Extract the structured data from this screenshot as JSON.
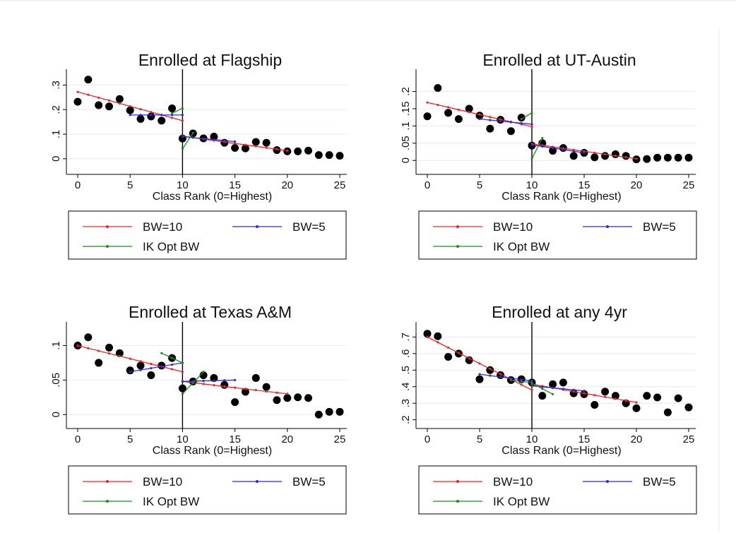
{
  "legend_labels": {
    "bw10": "BW=10",
    "bw5": "BW=5",
    "ik": "IK Opt BW"
  },
  "colors": {
    "bw10": "#e8262a",
    "bw5": "#2a2ad8",
    "ik": "#1f8a1f",
    "dots": "#000000",
    "grid": "#e3eaf0",
    "cutoff": "#000000"
  },
  "chart_data": [
    {
      "type": "scatter",
      "title": "Enrolled at Flagship",
      "xlabel": "Class Rank (0=Highest)",
      "ylabel": "",
      "xlim": [
        0,
        25
      ],
      "ylim": [
        -0.035,
        0.33
      ],
      "xticks": [
        0,
        5,
        10,
        15,
        20,
        25
      ],
      "yticks": [
        0,
        0.1,
        0.2,
        0.3
      ],
      "ytick_labels": [
        "0",
        ".1",
        ".2",
        ".3"
      ],
      "cutoff": 10,
      "grid": true,
      "legend_position": "bottom",
      "points": {
        "x": [
          0,
          1,
          2,
          3,
          4,
          5,
          6,
          7,
          8,
          9,
          10,
          11,
          12,
          13,
          14,
          15,
          16,
          17,
          18,
          19,
          20,
          21,
          22,
          23,
          24,
          25
        ],
        "y": [
          0.232,
          0.322,
          0.218,
          0.213,
          0.243,
          0.197,
          0.162,
          0.172,
          0.155,
          0.205,
          0.082,
          0.103,
          0.083,
          0.09,
          0.065,
          0.044,
          0.042,
          0.068,
          0.065,
          0.035,
          0.03,
          0.03,
          0.033,
          0.015,
          0.015,
          0.012
        ]
      },
      "series": [
        {
          "name": "BW=10",
          "key": "bw10",
          "segments": [
            {
              "x": [
                0,
                10
              ],
              "y": [
                0.272,
                0.155
              ]
            },
            {
              "x": [
                10,
                20
              ],
              "y": [
                0.092,
                0.033
              ]
            }
          ]
        },
        {
          "name": "BW=5",
          "key": "bw5",
          "segments": [
            {
              "x": [
                5,
                10
              ],
              "y": [
                0.178,
                0.178
              ]
            },
            {
              "x": [
                10,
                15
              ],
              "y": [
                0.09,
                0.07
              ]
            }
          ]
        },
        {
          "name": "IK Opt BW",
          "key": "ik",
          "segments": [
            {
              "x": [
                9,
                10
              ],
              "y": [
                0.185,
                0.205
              ]
            },
            {
              "x": [
                10,
                11
              ],
              "y": [
                0.04,
                0.105
              ]
            }
          ]
        }
      ]
    },
    {
      "type": "scatter",
      "title": "Enrolled at UT-Austin",
      "xlabel": "Class Rank (0=Highest)",
      "ylabel": "",
      "xlim": [
        0,
        25
      ],
      "ylim": [
        -0.02,
        0.24
      ],
      "xticks": [
        0,
        5,
        10,
        15,
        20,
        25
      ],
      "yticks": [
        0,
        0.05,
        0.1,
        0.15,
        0.2
      ],
      "ytick_labels": [
        "0",
        ".05",
        ".1",
        ".15",
        ".2"
      ],
      "cutoff": 10,
      "grid": true,
      "legend_position": "bottom",
      "points": {
        "x": [
          0,
          1,
          2,
          3,
          4,
          5,
          6,
          7,
          8,
          9,
          10,
          11,
          12,
          13,
          14,
          15,
          16,
          17,
          18,
          19,
          20,
          21,
          22,
          23,
          24,
          25
        ],
        "y": [
          0.128,
          0.21,
          0.138,
          0.12,
          0.15,
          0.13,
          0.092,
          0.118,
          0.085,
          0.124,
          0.043,
          0.05,
          0.028,
          0.036,
          0.013,
          0.022,
          0.009,
          0.013,
          0.018,
          0.013,
          0.003,
          0.004,
          0.008,
          0.008,
          0.008,
          0.008
        ]
      },
      "series": [
        {
          "name": "BW=10",
          "key": "bw10",
          "segments": [
            {
              "x": [
                0,
                10
              ],
              "y": [
                0.168,
                0.098
              ]
            },
            {
              "x": [
                10,
                20
              ],
              "y": [
                0.048,
                0.005
              ]
            }
          ]
        },
        {
          "name": "BW=5",
          "key": "bw5",
          "segments": [
            {
              "x": [
                5,
                10
              ],
              "y": [
                0.12,
                0.105
              ]
            },
            {
              "x": [
                10,
                15
              ],
              "y": [
                0.045,
                0.022
              ]
            }
          ]
        },
        {
          "name": "IK Opt BW",
          "key": "ik",
          "segments": [
            {
              "x": [
                9,
                10
              ],
              "y": [
                0.12,
                0.138
              ]
            },
            {
              "x": [
                10,
                11
              ],
              "y": [
                0.005,
                0.065
              ]
            }
          ]
        }
      ]
    },
    {
      "type": "scatter",
      "title": "Enrolled at Texas A&M",
      "xlabel": "Class Rank (0=Highest)",
      "ylabel": "",
      "xlim": [
        0,
        25
      ],
      "ylim": [
        -0.01,
        0.122
      ],
      "xticks": [
        0,
        5,
        10,
        15,
        20,
        25
      ],
      "yticks": [
        0,
        0.05,
        0.1
      ],
      "ytick_labels": [
        "0",
        ".05",
        ".1"
      ],
      "cutoff": 10,
      "grid": true,
      "legend_position": "bottom",
      "points": {
        "x": [
          0,
          1,
          2,
          3,
          4,
          5,
          6,
          7,
          8,
          9,
          10,
          11,
          12,
          13,
          14,
          15,
          16,
          17,
          18,
          19,
          20,
          21,
          22,
          23,
          24,
          25
        ],
        "y": [
          0.1,
          0.112,
          0.075,
          0.097,
          0.089,
          0.064,
          0.071,
          0.057,
          0.071,
          0.082,
          0.038,
          0.048,
          0.057,
          0.053,
          0.043,
          0.018,
          0.033,
          0.053,
          0.04,
          0.021,
          0.024,
          0.025,
          0.024,
          0.0,
          0.004,
          0.004
        ]
      },
      "series": [
        {
          "name": "BW=10",
          "key": "bw10",
          "segments": [
            {
              "x": [
                0,
                10
              ],
              "y": [
                0.1,
                0.062
              ]
            },
            {
              "x": [
                10,
                20
              ],
              "y": [
                0.048,
                0.03
              ]
            }
          ]
        },
        {
          "name": "BW=5",
          "key": "bw5",
          "segments": [
            {
              "x": [
                5,
                10
              ],
              "y": [
                0.062,
                0.075
              ]
            },
            {
              "x": [
                10,
                15
              ],
              "y": [
                0.048,
                0.05
              ]
            }
          ]
        },
        {
          "name": "IK Opt BW",
          "key": "ik",
          "segments": [
            {
              "x": [
                8,
                10
              ],
              "y": [
                0.089,
                0.075
              ]
            },
            {
              "x": [
                10,
                12
              ],
              "y": [
                0.03,
                0.062
              ]
            }
          ]
        }
      ]
    },
    {
      "type": "scatter",
      "title": "Enrolled at any 4yr",
      "xlabel": "Class Rank (0=Highest)",
      "ylabel": "",
      "xlim": [
        0,
        25
      ],
      "ylim": [
        0.19,
        0.74
      ],
      "xticks": [
        0,
        5,
        10,
        15,
        20,
        25
      ],
      "yticks": [
        0.2,
        0.3,
        0.4,
        0.5,
        0.6,
        0.7
      ],
      "ytick_labels": [
        ".2",
        ".3",
        ".4",
        ".5",
        ".6",
        ".7"
      ],
      "cutoff": 10,
      "grid": true,
      "legend_position": "bottom",
      "points": {
        "x": [
          0,
          1,
          2,
          3,
          4,
          5,
          6,
          7,
          8,
          9,
          10,
          11,
          12,
          13,
          14,
          15,
          16,
          17,
          18,
          19,
          20,
          21,
          22,
          23,
          24,
          25
        ],
        "y": [
          0.72,
          0.705,
          0.58,
          0.6,
          0.56,
          0.445,
          0.5,
          0.47,
          0.44,
          0.445,
          0.425,
          0.345,
          0.415,
          0.425,
          0.36,
          0.355,
          0.29,
          0.37,
          0.345,
          0.3,
          0.27,
          0.345,
          0.335,
          0.245,
          0.33,
          0.275
        ]
      },
      "series": [
        {
          "name": "BW=10",
          "key": "bw10",
          "segments": [
            {
              "x": [
                0,
                10
              ],
              "y": [
                0.7,
                0.38
              ]
            },
            {
              "x": [
                10,
                20
              ],
              "y": [
                0.415,
                0.305
              ]
            }
          ]
        },
        {
          "name": "BW=5",
          "key": "bw5",
          "segments": [
            {
              "x": [
                5,
                10
              ],
              "y": [
                0.475,
                0.435
              ]
            },
            {
              "x": [
                10,
                15
              ],
              "y": [
                0.405,
                0.375
              ]
            }
          ]
        },
        {
          "name": "IK Opt BW",
          "key": "ik",
          "segments": [
            {
              "x": [
                8,
                10
              ],
              "y": [
                0.44,
                0.425
              ]
            },
            {
              "x": [
                10,
                12
              ],
              "y": [
                0.42,
                0.355
              ]
            }
          ]
        }
      ]
    }
  ]
}
